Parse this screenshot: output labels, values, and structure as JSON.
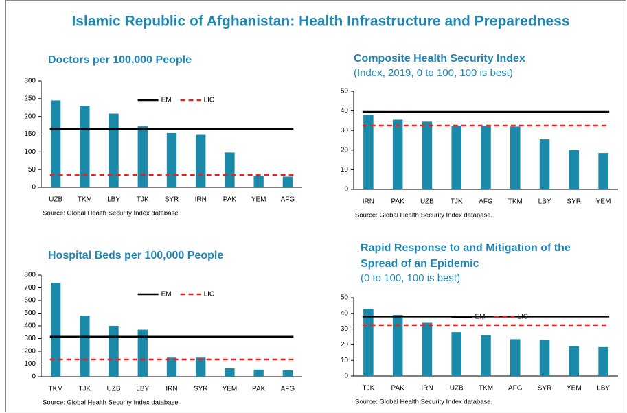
{
  "title": "Islamic Republic of Afghanistan: Health Infrastructure and Preparedness",
  "chart_data": [
    {
      "type": "bar",
      "title": "Doctors per 100,000 People",
      "categories": [
        "UZB",
        "TKM",
        "LBY",
        "TJK",
        "SYR",
        "IRN",
        "PAK",
        "YEM",
        "AFG"
      ],
      "values": [
        245,
        230,
        208,
        172,
        153,
        148,
        98,
        32,
        30
      ],
      "color": "#1a8aa8",
      "ylim": [
        0,
        300
      ],
      "yticks": [
        0,
        50,
        100,
        150,
        200,
        250,
        300
      ],
      "lines": [
        {
          "name": "EM",
          "value": 165,
          "color": "#000000",
          "style": "solid"
        },
        {
          "name": "LIC",
          "value": 35,
          "color": "#e8231f",
          "style": "dashed"
        }
      ],
      "legend": true,
      "source": "Source: Global Health Security Index database."
    },
    {
      "type": "bar",
      "title": "Composite Health Security Index",
      "subtitle": "(Index, 2019, 0 to 100, 100 is best)",
      "categories": [
        "IRN",
        "PAK",
        "UZB",
        "TJK",
        "AFG",
        "TKM",
        "LBY",
        "SYR",
        "YEM"
      ],
      "values": [
        38,
        35.5,
        34.5,
        32.5,
        32.5,
        32,
        25.5,
        20,
        18.5
      ],
      "color": "#1a8aa8",
      "ylim": [
        0,
        50
      ],
      "yticks": [
        0,
        10,
        20,
        30,
        40,
        50
      ],
      "lines": [
        {
          "name": "EM",
          "value": 39.5,
          "color": "#000000",
          "style": "solid"
        },
        {
          "name": "LIC",
          "value": 32.5,
          "color": "#e8231f",
          "style": "dashed"
        }
      ],
      "legend": false,
      "source": "Source: Global Health Security Index database."
    },
    {
      "type": "bar",
      "title": "Hospital Beds per 100,000 People",
      "categories": [
        "TKM",
        "TJK",
        "UZB",
        "LBY",
        "IRN",
        "SYR",
        "YEM",
        "PAK",
        "AFG"
      ],
      "values": [
        740,
        480,
        400,
        370,
        150,
        150,
        65,
        55,
        50
      ],
      "color": "#1a8aa8",
      "ylim": [
        0,
        800
      ],
      "yticks": [
        0,
        100,
        200,
        300,
        400,
        500,
        600,
        700,
        800
      ],
      "lines": [
        {
          "name": "EM",
          "value": 315,
          "color": "#000000",
          "style": "solid"
        },
        {
          "name": "LIC",
          "value": 135,
          "color": "#e8231f",
          "style": "dashed"
        }
      ],
      "legend": true,
      "source": "Source: Global Health Security Index database."
    },
    {
      "type": "bar",
      "title": [
        "Rapid Response to and Mitigation of the",
        "Spread of an Epidemic"
      ],
      "subtitle": "(0 to 100, 100 is best)",
      "categories": [
        "TJK",
        "PAK",
        "IRN",
        "UZB",
        "TKM",
        "AFG",
        "SYR",
        "YEM",
        "LBY"
      ],
      "values": [
        43,
        39,
        34,
        28,
        26,
        23.5,
        23,
        19,
        18.5
      ],
      "color": "#1a8aa8",
      "ylim": [
        0,
        50
      ],
      "yticks": [
        0,
        10,
        20,
        30,
        40,
        50
      ],
      "lines": [
        {
          "name": "EM",
          "value": 38,
          "color": "#000000",
          "style": "solid"
        },
        {
          "name": "LIC",
          "value": 32.5,
          "color": "#e8231f",
          "style": "dashed"
        }
      ],
      "legend": true,
      "source": "Source: Global Health Security Index database."
    }
  ]
}
